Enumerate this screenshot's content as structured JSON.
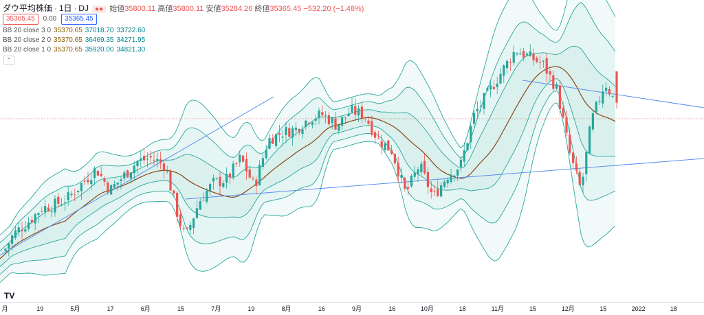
{
  "header": {
    "symbol": "ダウ平均株価",
    "interval": "1日",
    "source": "DJ",
    "open_label": "始値",
    "open": "35800.11",
    "high_label": "高値",
    "high": "35800.11",
    "low_label": "安値",
    "low": "35284.26",
    "close_label": "終値",
    "close": "35365.45",
    "change": "−532.20 (−1.48%)",
    "sell_price": "35365.45",
    "spread": "0.00",
    "buy_price": "35365.45"
  },
  "bb_legend": [
    {
      "label": "BB 20 close 3 0",
      "basis": "35370.65",
      "upper": "37018.70",
      "lower": "33722.60"
    },
    {
      "label": "BB 20 close 2 0",
      "basis": "35370.65",
      "upper": "36469.35",
      "lower": "34271.95"
    },
    {
      "label": "BB 20 close 1 0",
      "basis": "35370.65",
      "upper": "35920.00",
      "lower": "34821.30"
    }
  ],
  "colors": {
    "up": "#26a69a",
    "down": "#ef5350",
    "basis": "#8b4513",
    "band": "#26a69a",
    "trend": "#5b8def"
  },
  "chart_data": {
    "type": "line",
    "title": "ダウ平均株価 · 1日 · DJ",
    "x_tick_labels": [
      "月",
      "19",
      "5月",
      "17",
      "6月",
      "15",
      "7月",
      "19",
      "8月",
      "16",
      "9月",
      "16",
      "10月",
      "18",
      "11月",
      "15",
      "12月",
      "15",
      "2022",
      "18"
    ],
    "series": [
      {
        "name": "BB 20 close 3 0",
        "upper": 37018.7,
        "basis": 35370.65,
        "lower": 33722.6
      },
      {
        "name": "BB 20 close 2 0",
        "upper": 36469.35,
        "basis": 35370.65,
        "lower": 34271.95
      },
      {
        "name": "BB 20 close 1 0",
        "upper": 35920.0,
        "basis": 35370.65,
        "lower": 34821.3
      }
    ],
    "last_candle": {
      "open": 35800.11,
      "high": 35800.11,
      "low": 35284.26,
      "close": 35365.45
    },
    "close_path": [
      [
        0,
        33200
      ],
      [
        20,
        33550
      ],
      [
        40,
        33700
      ],
      [
        60,
        33900
      ],
      [
        80,
        33950
      ],
      [
        100,
        34050
      ],
      [
        120,
        34250
      ],
      [
        140,
        34450
      ],
      [
        160,
        34150
      ],
      [
        180,
        34350
      ],
      [
        200,
        34550
      ],
      [
        220,
        34600
      ],
      [
        240,
        34500
      ],
      [
        260,
        33750
      ],
      [
        270,
        33500
      ],
      [
        290,
        34000
      ],
      [
        310,
        34250
      ],
      [
        330,
        34300
      ],
      [
        350,
        34600
      ],
      [
        370,
        34200
      ],
      [
        390,
        34850
      ],
      [
        410,
        34950
      ],
      [
        430,
        35000
      ],
      [
        450,
        35150
      ],
      [
        470,
        35200
      ],
      [
        490,
        35050
      ],
      [
        510,
        35250
      ],
      [
        530,
        35200
      ],
      [
        550,
        34850
      ],
      [
        570,
        34700
      ],
      [
        590,
        34100
      ],
      [
        610,
        34500
      ],
      [
        630,
        34050
      ],
      [
        650,
        34350
      ],
      [
        670,
        34500
      ],
      [
        690,
        35200
      ],
      [
        710,
        35500
      ],
      [
        730,
        35800
      ],
      [
        750,
        36100
      ],
      [
        770,
        36000
      ],
      [
        790,
        35900
      ],
      [
        810,
        35550
      ],
      [
        830,
        34600
      ],
      [
        845,
        34150
      ],
      [
        860,
        35100
      ],
      [
        880,
        35650
      ],
      [
        895,
        35365
      ]
    ],
    "x_range": [
      0,
      1024
    ],
    "ylim": [
      32600,
      36600
    ]
  }
}
